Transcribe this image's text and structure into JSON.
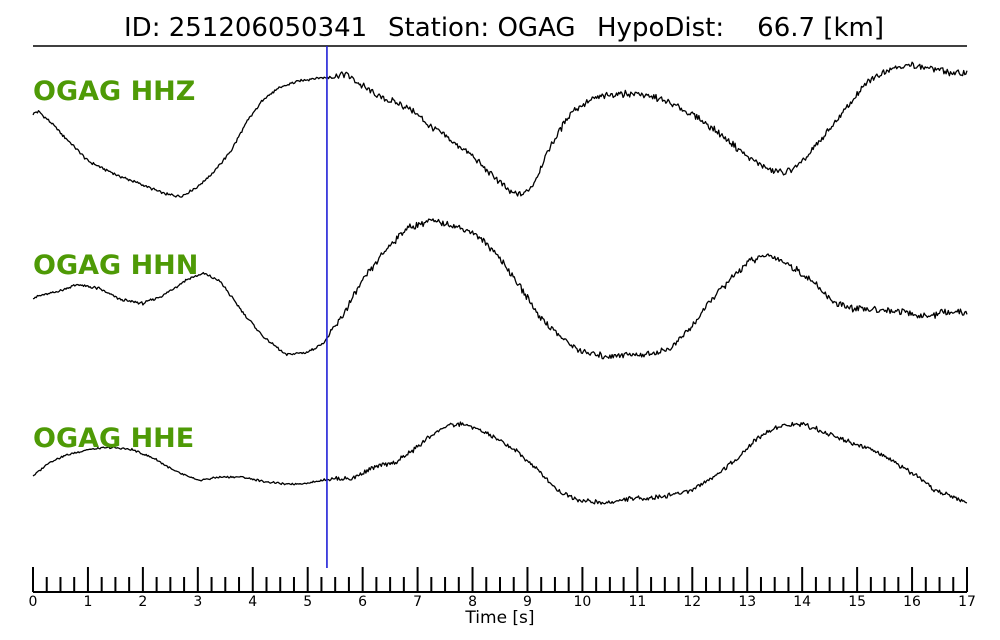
{
  "header": {
    "id_text": "ID: 251206050341",
    "station_text": "Station: OGAG",
    "hypodist_text": "HypoDist:    66.7 [km]"
  },
  "colors": {
    "trace": "#000000",
    "channel_label": "#4e9a06",
    "pick_line": "#1f1fd6",
    "axis": "#000000"
  },
  "chart_data": {
    "type": "line",
    "title": "ID: 251206050341   Station: OGAG   HypoDist:    66.7 [km]",
    "xlabel": "Time [s]",
    "xlim": [
      0,
      17
    ],
    "x_ticks": [
      0,
      1,
      2,
      3,
      4,
      5,
      6,
      7,
      8,
      9,
      10,
      11,
      12,
      13,
      14,
      15,
      16,
      17
    ],
    "minor_ticks_per_unit": 4,
    "pick_time": 5.35,
    "amplitude_units": "normalized trace amplitude (-1 to 1)",
    "series": [
      {
        "name": "OGAG HHZ",
        "label": "OGAG HHZ",
        "t": [
          0,
          0.1,
          0.3,
          0.6,
          1.0,
          1.5,
          2.0,
          2.4,
          2.7,
          3.0,
          3.3,
          3.6,
          3.9,
          4.2,
          4.5,
          4.8,
          5.1,
          5.4,
          5.7,
          6.0,
          6.3,
          6.6,
          6.9,
          7.2,
          7.6,
          8.0,
          8.4,
          8.7,
          8.9,
          9.1,
          9.4,
          9.8,
          10.2,
          10.6,
          11.0,
          11.4,
          11.8,
          12.2,
          12.6,
          13.0,
          13.4,
          13.7,
          14.0,
          14.4,
          14.8,
          15.2,
          15.6,
          16.0,
          16.4,
          16.8,
          17.0
        ],
        "values": [
          0.35,
          0.38,
          0.25,
          0.02,
          -0.28,
          -0.46,
          -0.6,
          -0.72,
          -0.75,
          -0.62,
          -0.42,
          -0.15,
          0.25,
          0.55,
          0.7,
          0.78,
          0.82,
          0.84,
          0.88,
          0.72,
          0.58,
          0.5,
          0.4,
          0.2,
          0.0,
          -0.22,
          -0.5,
          -0.7,
          -0.74,
          -0.6,
          -0.1,
          0.38,
          0.55,
          0.62,
          0.62,
          0.55,
          0.42,
          0.25,
          0.02,
          -0.22,
          -0.4,
          -0.44,
          -0.3,
          0.05,
          0.42,
          0.78,
          0.96,
          1.0,
          0.95,
          0.88,
          0.9
        ]
      },
      {
        "name": "OGAG HHN",
        "label": "OGAG HHN",
        "t": [
          0,
          0.4,
          0.8,
          1.2,
          1.6,
          2.0,
          2.4,
          2.8,
          3.1,
          3.4,
          3.8,
          4.2,
          4.6,
          5.0,
          5.3,
          5.6,
          6.0,
          6.4,
          6.8,
          7.2,
          7.6,
          8.0,
          8.4,
          8.8,
          9.2,
          9.6,
          10.0,
          10.4,
          10.8,
          11.2,
          11.6,
          12.0,
          12.4,
          12.8,
          13.0,
          13.4,
          13.8,
          14.2,
          14.6,
          15.0,
          15.4,
          15.8,
          16.2,
          16.6,
          17.0
        ],
        "values": [
          -0.02,
          0.05,
          0.15,
          0.1,
          -0.05,
          -0.1,
          0.02,
          0.22,
          0.3,
          0.2,
          -0.2,
          -0.55,
          -0.78,
          -0.75,
          -0.62,
          -0.3,
          0.2,
          0.6,
          0.9,
          1.0,
          0.95,
          0.85,
          0.6,
          0.2,
          -0.25,
          -0.55,
          -0.75,
          -0.8,
          -0.78,
          -0.78,
          -0.7,
          -0.4,
          0.0,
          0.3,
          0.45,
          0.55,
          0.4,
          0.18,
          -0.1,
          -0.18,
          -0.18,
          -0.2,
          -0.28,
          -0.22,
          -0.22
        ]
      },
      {
        "name": "OGAG HHE",
        "label": "OGAG HHE",
        "t": [
          0,
          0.3,
          0.6,
          1.0,
          1.4,
          1.8,
          2.2,
          2.6,
          3.0,
          3.4,
          3.8,
          4.2,
          4.6,
          5.0,
          5.4,
          5.8,
          6.2,
          6.6,
          6.9,
          7.2,
          7.5,
          7.8,
          8.1,
          8.4,
          8.8,
          9.2,
          9.6,
          10.0,
          10.4,
          10.8,
          11.2,
          11.6,
          12.0,
          12.4,
          12.8,
          13.2,
          13.6,
          14.0,
          14.4,
          14.8,
          15.2,
          15.6,
          16.0,
          16.4,
          16.8,
          17.0
        ],
        "values": [
          -0.2,
          0.05,
          0.18,
          0.28,
          0.32,
          0.28,
          0.12,
          -0.12,
          -0.28,
          -0.22,
          -0.22,
          -0.3,
          -0.35,
          -0.33,
          -0.25,
          -0.25,
          -0.05,
          0.05,
          0.25,
          0.5,
          0.7,
          0.75,
          0.65,
          0.5,
          0.25,
          -0.1,
          -0.5,
          -0.65,
          -0.7,
          -0.62,
          -0.6,
          -0.55,
          -0.45,
          -0.2,
          0.1,
          0.5,
          0.72,
          0.75,
          0.6,
          0.45,
          0.3,
          0.1,
          -0.15,
          -0.45,
          -0.6,
          -0.7
        ]
      }
    ]
  }
}
